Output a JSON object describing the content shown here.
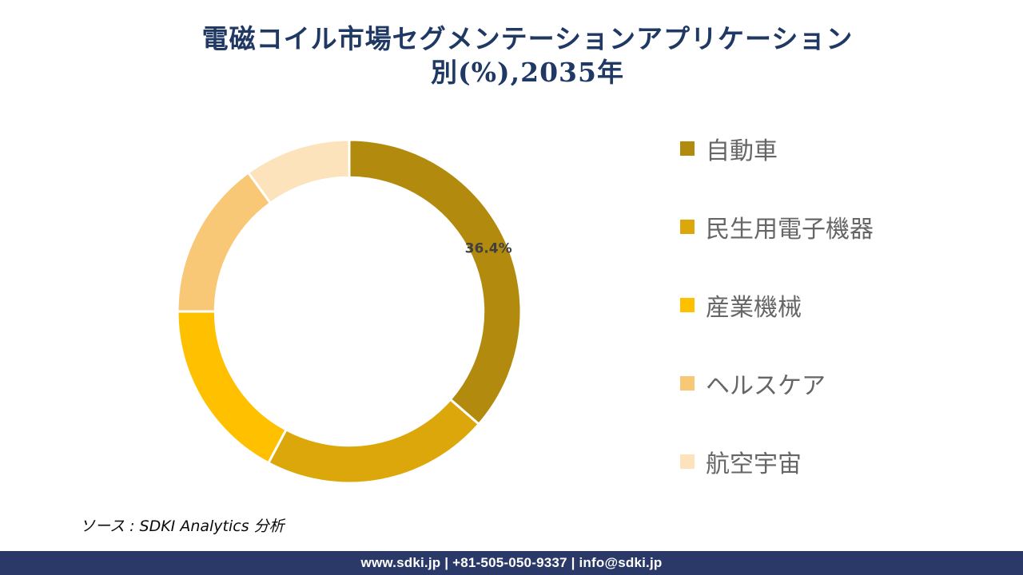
{
  "title": {
    "line1": "電磁コイル市場セグメンテーションアプリケーション",
    "line2": "別(%),2035年",
    "color": "#1F3864"
  },
  "chart_data": {
    "type": "donut",
    "title": "電磁コイル市場セグメンテーションアプリケーション別(%),2035年",
    "unit": "%",
    "start_angle_deg": 0,
    "inner_radius_ratio": 0.78,
    "legend_position": "right",
    "gap_color": "#FFFFFF",
    "data_label_color": "#404040",
    "segments": [
      {
        "label": "自動車",
        "value": 36.4,
        "color": "#B28B0E",
        "data_label": "36.4%"
      },
      {
        "label": "民生用電子機器",
        "value": 21.4,
        "color": "#DCA70B",
        "data_label": ""
      },
      {
        "label": "産業機械",
        "value": 17.2,
        "color": "#FFC000",
        "data_label": ""
      },
      {
        "label": "ヘルスケア",
        "value": 15.0,
        "color": "#F9C877",
        "data_label": ""
      },
      {
        "label": "航空宇宙",
        "value": 10.0,
        "color": "#FCE3BC",
        "data_label": ""
      }
    ]
  },
  "source": {
    "text": "ソース : SDKI Analytics 分析"
  },
  "footer": {
    "text": "www.sdki.jp | +81-505-050-9337 | info@sdki.jp",
    "bg_color": "#2B3968"
  }
}
